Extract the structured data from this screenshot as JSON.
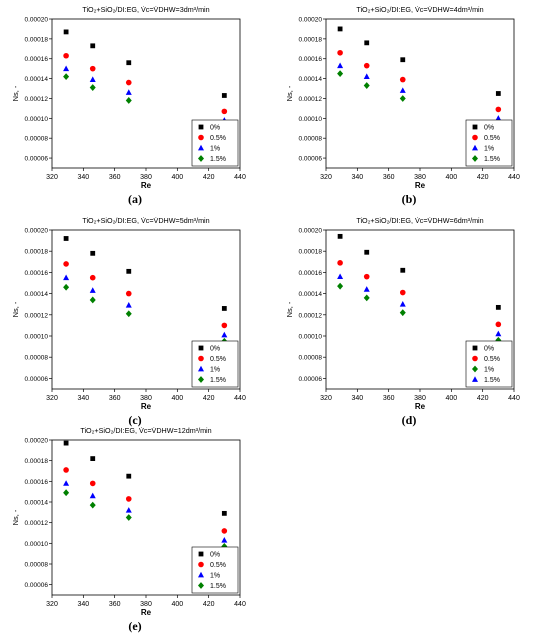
{
  "chart_data": [
    {
      "type": "scatter",
      "panel": "(a)",
      "title": "TiO₂+SiO₂/DI:EG, V̇c=V̇DHW=3dm³/min",
      "xlabel": "Re",
      "ylabel": "Ns, -",
      "xlim": [
        320,
        440
      ],
      "ylim": [
        5e-05,
        0.0002
      ],
      "xticks": [
        "320",
        "340",
        "360",
        "380",
        "400",
        "420",
        "440"
      ],
      "yticks": [
        "0.00006",
        "0.00008",
        "0.00010",
        "0.00012",
        "0.00014",
        "0.00016",
        "0.00018",
        "0.00020"
      ],
      "legend_position": "bottom-right",
      "x": [
        329,
        346,
        369,
        430
      ],
      "series": [
        {
          "name": "0%",
          "marker": "square",
          "color": "#000000",
          "values": [
            0.000187,
            0.000173,
            0.000156,
            0.000123
          ]
        },
        {
          "name": "0.5%",
          "marker": "circle",
          "color": "#ff0000",
          "values": [
            0.000163,
            0.00015,
            0.000136,
            0.000107
          ]
        },
        {
          "name": "1%",
          "marker": "triangle",
          "color": "#0000ff",
          "values": [
            0.00015,
            0.000139,
            0.000126,
            9.8e-05
          ]
        },
        {
          "name": "1.5%",
          "marker": "diamond",
          "color": "#008000",
          "values": [
            0.000142,
            0.000131,
            0.000118,
            9.3e-05
          ]
        }
      ]
    },
    {
      "type": "scatter",
      "panel": "(b)",
      "title": "TiO₂+SiO₂/DI:EG, V̇c=V̇DHW=4dm³/min",
      "xlabel": "Re",
      "ylabel": "Ns, -",
      "xlim": [
        320,
        440
      ],
      "ylim": [
        5e-05,
        0.0002
      ],
      "xticks": [
        "320",
        "340",
        "360",
        "380",
        "400",
        "420",
        "440"
      ],
      "yticks": [
        "0.00006",
        "0.00008",
        "0.00010",
        "0.00012",
        "0.00014",
        "0.00016",
        "0.00018",
        "0.00020"
      ],
      "legend_position": "bottom-right",
      "x": [
        329,
        346,
        369,
        430
      ],
      "series": [
        {
          "name": "0%",
          "marker": "square",
          "color": "#000000",
          "values": [
            0.00019,
            0.000176,
            0.000159,
            0.000125
          ]
        },
        {
          "name": "0.5%",
          "marker": "circle",
          "color": "#ff0000",
          "values": [
            0.000166,
            0.000153,
            0.000139,
            0.000109
          ]
        },
        {
          "name": "1%",
          "marker": "triangle",
          "color": "#0000ff",
          "values": [
            0.000153,
            0.000142,
            0.000128,
            0.0001
          ]
        },
        {
          "name": "1.5%",
          "marker": "diamond",
          "color": "#008000",
          "values": [
            0.000145,
            0.000133,
            0.00012,
            9.4e-05
          ]
        }
      ]
    },
    {
      "type": "scatter",
      "panel": "(c)",
      "title": "TiO₂+SiO₂/DI:EG, V̇c=V̇DHW=5dm³/min",
      "xlabel": "Re",
      "ylabel": "Ns, -",
      "xlim": [
        320,
        440
      ],
      "ylim": [
        5e-05,
        0.0002
      ],
      "xticks": [
        "320",
        "340",
        "360",
        "380",
        "400",
        "420",
        "440"
      ],
      "yticks": [
        "0.00006",
        "0.00008",
        "0.00010",
        "0.00012",
        "0.00014",
        "0.00016",
        "0.00018",
        "0.00020"
      ],
      "legend_position": "bottom-right",
      "x": [
        329,
        346,
        369,
        430
      ],
      "series": [
        {
          "name": "0%",
          "marker": "square",
          "color": "#000000",
          "values": [
            0.000192,
            0.000178,
            0.000161,
            0.000126
          ]
        },
        {
          "name": "0.5%",
          "marker": "circle",
          "color": "#ff0000",
          "values": [
            0.000168,
            0.000155,
            0.00014,
            0.00011
          ]
        },
        {
          "name": "1%",
          "marker": "triangle",
          "color": "#0000ff",
          "values": [
            0.000155,
            0.000143,
            0.000129,
            0.000101
          ]
        },
        {
          "name": "1.5%",
          "marker": "diamond",
          "color": "#008000",
          "values": [
            0.000146,
            0.000134,
            0.000121,
            9.5e-05
          ]
        }
      ]
    },
    {
      "type": "scatter",
      "panel": "(d)",
      "title": "TiO₂+SiO₂/DI:EG, V̇c=V̇DHW=6dm³/min",
      "xlabel": "Re",
      "ylabel": "Ns, -",
      "xlim": [
        320,
        440
      ],
      "ylim": [
        5e-05,
        0.0002
      ],
      "xticks": [
        "320",
        "340",
        "360",
        "380",
        "400",
        "420",
        "440"
      ],
      "yticks": [
        "0.00006",
        "0.00008",
        "0.00010",
        "0.00012",
        "0.00014",
        "0.00016",
        "0.00018",
        "0.00020"
      ],
      "legend_position": "bottom-right",
      "x": [
        329,
        346,
        369,
        430
      ],
      "series": [
        {
          "name": "0%",
          "marker": "square",
          "color": "#000000",
          "values": [
            0.000194,
            0.000179,
            0.000162,
            0.000127
          ]
        },
        {
          "name": "0.5%",
          "marker": "circle",
          "color": "#ff0000",
          "values": [
            0.000169,
            0.000156,
            0.000141,
            0.000111
          ]
        },
        {
          "name": "1%",
          "marker": "diamond",
          "color": "#008000",
          "values": [
            0.000147,
            0.000136,
            0.000122,
            9.6e-05
          ]
        },
        {
          "name": "1.5%",
          "marker": "triangle",
          "color": "#0000ff",
          "values": [
            0.000156,
            0.000144,
            0.00013,
            0.000102
          ]
        }
      ]
    },
    {
      "type": "scatter",
      "panel": "(e)",
      "title": "TiO₂+SiO₂/DI:EG, V̇c=V̇DHW=12dm³/min",
      "xlabel": "Re",
      "ylabel": "Ns, -",
      "xlim": [
        320,
        440
      ],
      "ylim": [
        5e-05,
        0.0002
      ],
      "xticks": [
        "320",
        "340",
        "360",
        "380",
        "400",
        "420",
        "440"
      ],
      "yticks": [
        "0.00006",
        "0.00008",
        "0.00010",
        "0.00012",
        "0.00014",
        "0.00016",
        "0.00018",
        "0.00020"
      ],
      "legend_position": "bottom-right",
      "x": [
        329,
        346,
        369,
        430
      ],
      "series": [
        {
          "name": "0%",
          "marker": "square",
          "color": "#000000",
          "values": [
            0.000197,
            0.000182,
            0.000165,
            0.000129
          ]
        },
        {
          "name": "0.5%",
          "marker": "circle",
          "color": "#ff0000",
          "values": [
            0.000171,
            0.000158,
            0.000143,
            0.000112
          ]
        },
        {
          "name": "1%",
          "marker": "triangle",
          "color": "#0000ff",
          "values": [
            0.000158,
            0.000146,
            0.000132,
            0.000103
          ]
        },
        {
          "name": "1.5%",
          "marker": "diamond",
          "color": "#008000",
          "values": [
            0.000149,
            0.000137,
            0.000125,
            9.7e-05
          ]
        }
      ]
    }
  ]
}
